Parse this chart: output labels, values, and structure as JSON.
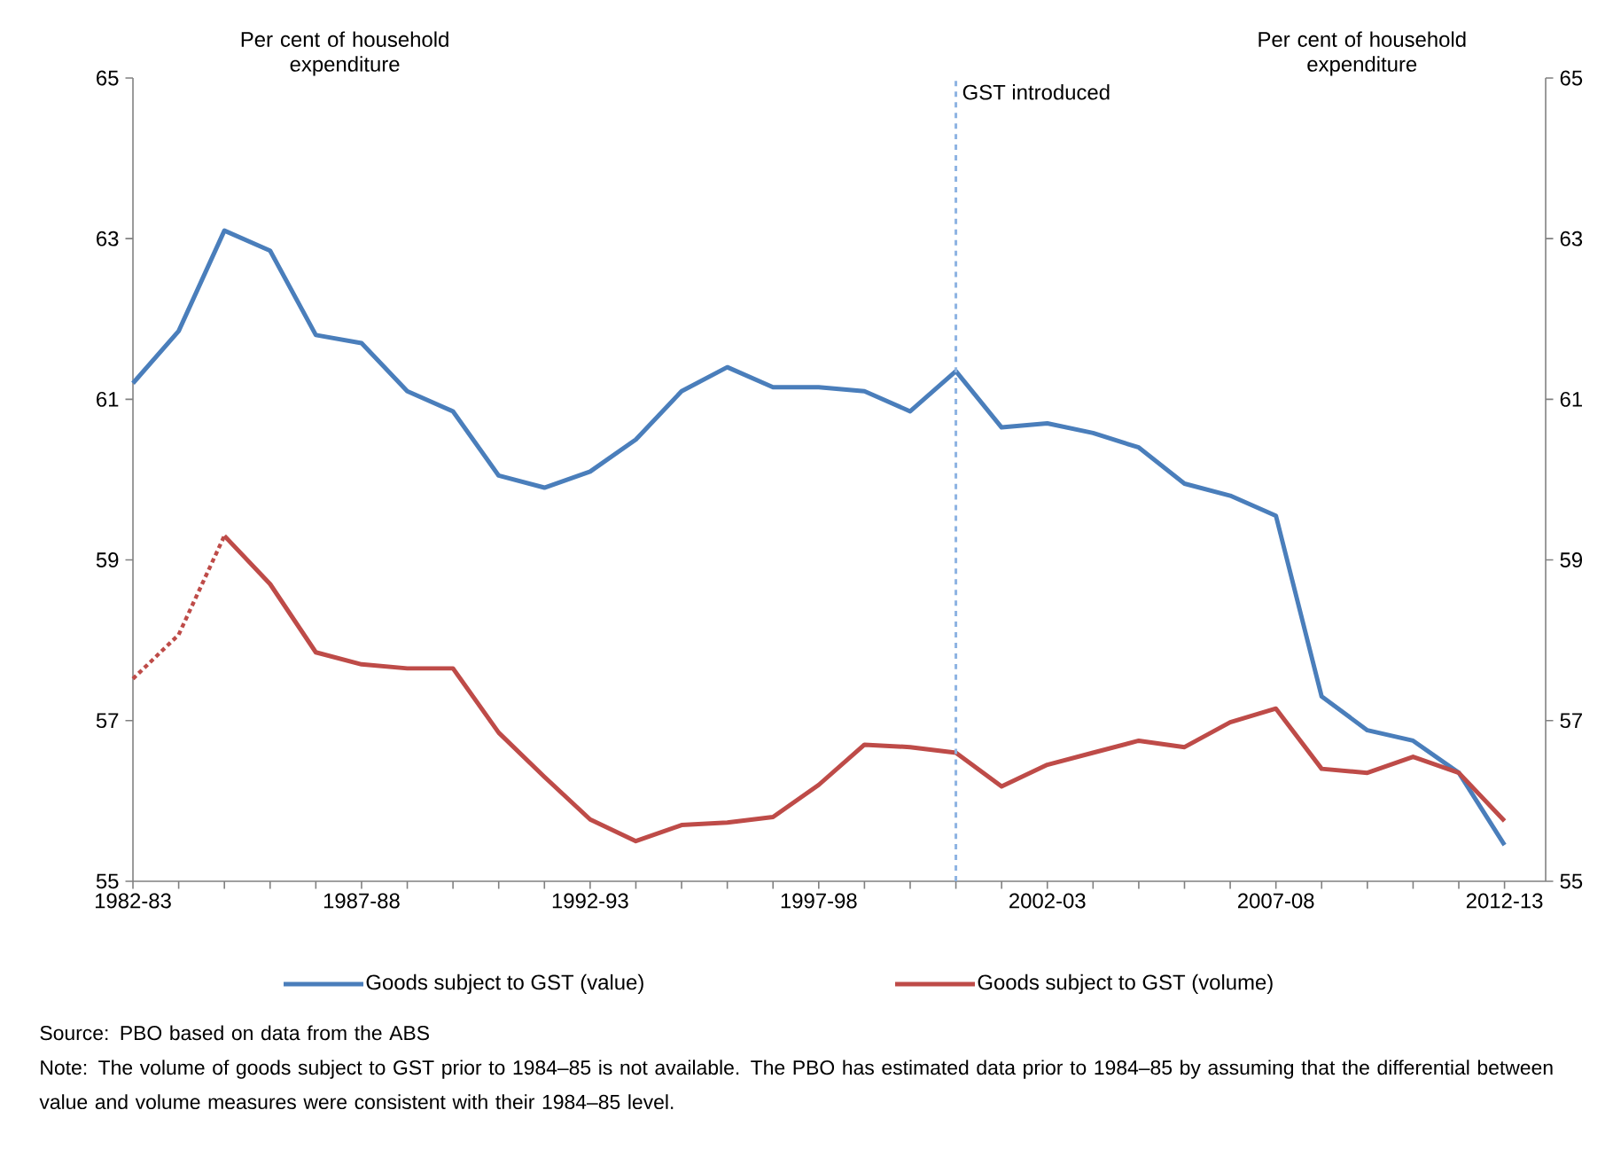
{
  "chart_data": {
    "type": "line",
    "categories": [
      "1982-83",
      null,
      null,
      null,
      null,
      "1987-88",
      null,
      null,
      null,
      null,
      "1992-93",
      null,
      null,
      null,
      null,
      "1997-98",
      null,
      null,
      null,
      null,
      "2002-03",
      null,
      null,
      null,
      null,
      "2007-08",
      null,
      null,
      null,
      null,
      "2012-13"
    ],
    "series": [
      {
        "name": "Goods subject to GST (value)",
        "color": "#4a7ebb",
        "line_style": "solid",
        "values": [
          61.2,
          61.85,
          63.1,
          62.85,
          61.8,
          61.7,
          61.1,
          60.85,
          60.05,
          59.9,
          60.1,
          60.5,
          61.1,
          61.4,
          61.15,
          61.15,
          61.1,
          60.85,
          61.35,
          60.65,
          60.7,
          60.58,
          60.4,
          59.95,
          59.8,
          59.55,
          57.3,
          56.88,
          56.75,
          56.35,
          55.45
        ]
      },
      {
        "name": "Goods subject to GST (volume)",
        "color": "#be4b48",
        "line_style": "solid",
        "values": [
          null,
          null,
          59.3,
          58.7,
          57.85,
          57.7,
          57.65,
          57.65,
          56.85,
          56.3,
          55.77,
          55.5,
          55.7,
          55.73,
          55.8,
          56.2,
          56.7,
          56.67,
          56.6,
          56.18,
          56.45,
          56.6,
          56.75,
          56.67,
          56.98,
          57.15,
          56.4,
          56.35,
          56.55,
          56.35,
          55.75
        ]
      },
      {
        "color": "#be4b48",
        "line_style": "dotted",
        "values": [
          57.52,
          58.07,
          59.3,
          null,
          null,
          null,
          null,
          null,
          null,
          null,
          null,
          null,
          null,
          null,
          null,
          null,
          null,
          null,
          null,
          null,
          null,
          null,
          null,
          null,
          null,
          null,
          null,
          null,
          null,
          null,
          null
        ]
      }
    ],
    "ylim": [
      55,
      65
    ],
    "yticks": [
      55,
      57,
      59,
      61,
      63,
      65
    ],
    "y2lim": [
      55,
      65
    ],
    "y2ticks": [
      55,
      57,
      59,
      61,
      63,
      65
    ],
    "legend": "bottom",
    "grid": false,
    "annotations": [
      "Per cent of household expenditure",
      "Per cent of household expenditure",
      "GST introduced",
      "Source:  PBO based on data from the ABS",
      "Note:  The volume of goods subject to GST prior to 1984–85 is not available.  The PBO has estimated data prior to 1984–85 by assuming that the differential between value and volume measures were consistent with their 1984–85 level."
    ]
  }
}
